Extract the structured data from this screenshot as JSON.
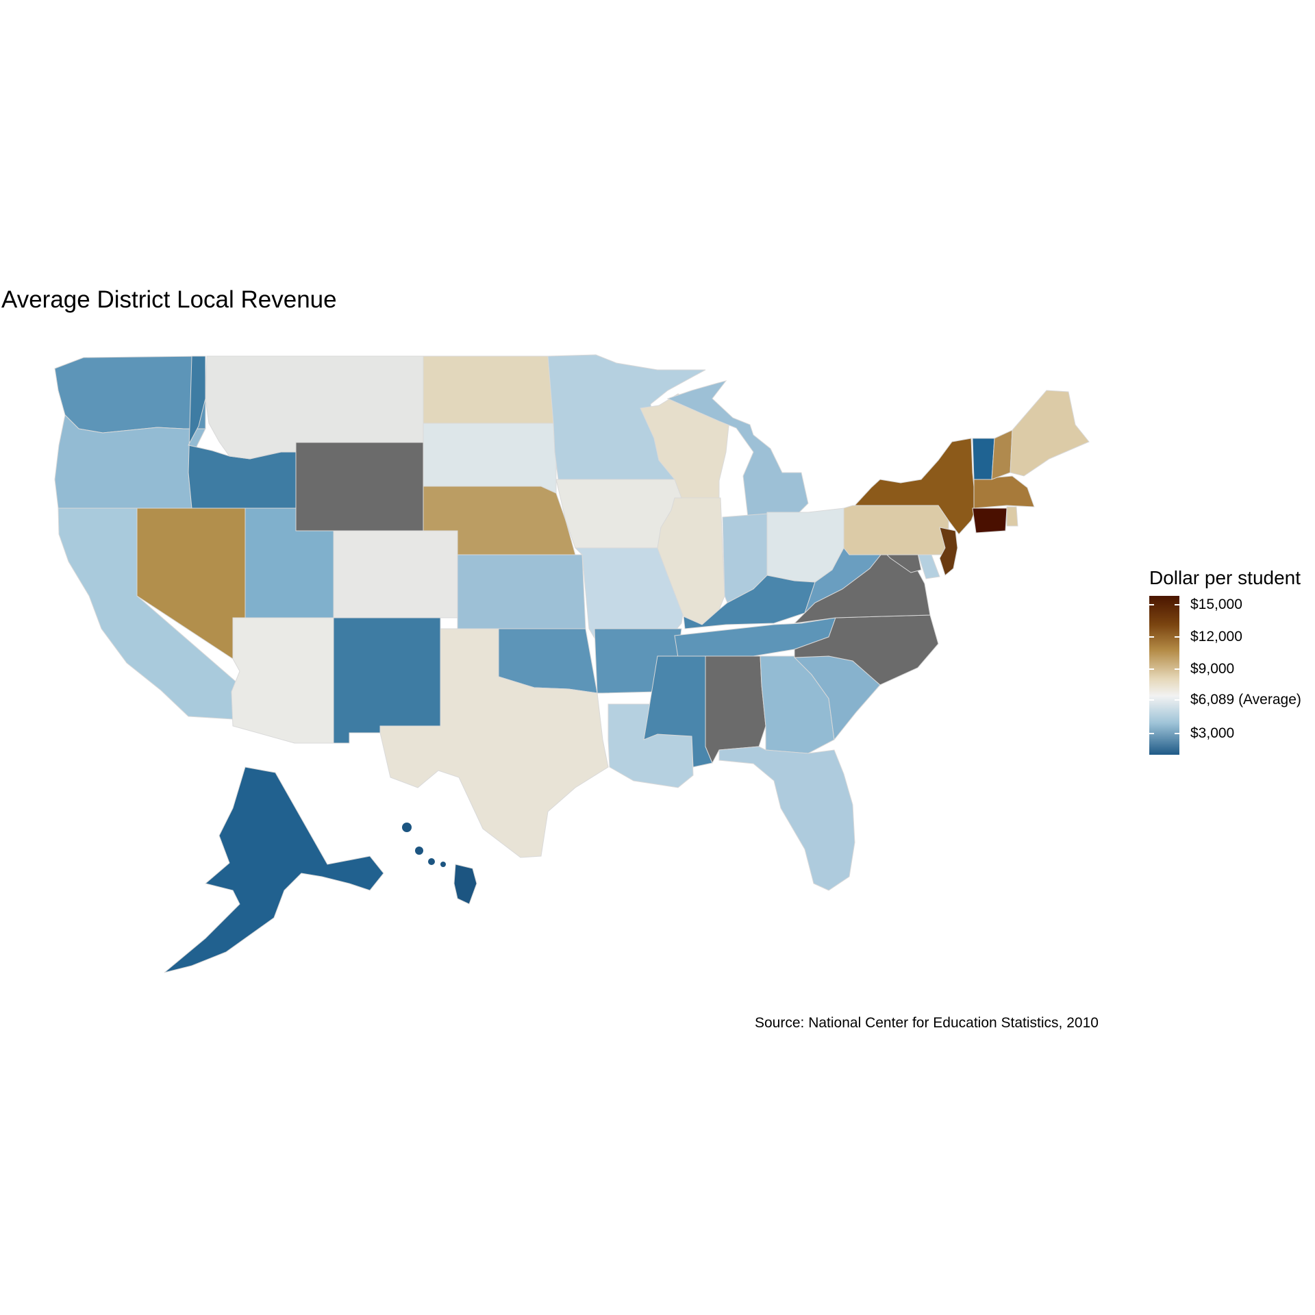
{
  "title": "Average District Local Revenue",
  "caption": "Source: National Center for Education Statistics, 2010",
  "legend": {
    "title": "Dollar per student",
    "ticks": [
      {
        "label": "$15,000",
        "value": 15000
      },
      {
        "label": "$12,000",
        "value": 12000
      },
      {
        "label": "$9,000",
        "value": 9000
      },
      {
        "label": "$6,089 (Average)",
        "value": 6089
      },
      {
        "label": "$3,000",
        "value": 3000
      }
    ],
    "scale_colors": {
      "low": "#1f5a87",
      "mid": "#f2f2f2",
      "high": "#4a1500"
    },
    "missing_color": "#6b6b6b"
  },
  "chart_data": {
    "type": "choropleth",
    "region": "United States (states)",
    "midpoint": 6089,
    "states": [
      {
        "state": "Washington",
        "color": "#5d95b8"
      },
      {
        "state": "Oregon",
        "color": "#93bbd3"
      },
      {
        "state": "California",
        "color": "#a9cadc"
      },
      {
        "state": "Nevada",
        "color": "#b28f4c"
      },
      {
        "state": "Idaho",
        "color": "#3e7ca3"
      },
      {
        "state": "Montana",
        "color": "#e5e6e4"
      },
      {
        "state": "Wyoming",
        "color": "#6b6b6b"
      },
      {
        "state": "Utah",
        "color": "#80b0cc"
      },
      {
        "state": "Arizona",
        "color": "#eaeae6"
      },
      {
        "state": "Colorado",
        "color": "#e7e7e5"
      },
      {
        "state": "New Mexico",
        "color": "#3e7ca3"
      },
      {
        "state": "North Dakota",
        "color": "#e2d7bc"
      },
      {
        "state": "South Dakota",
        "color": "#dde6e9"
      },
      {
        "state": "Nebraska",
        "color": "#bb9d63"
      },
      {
        "state": "Kansas",
        "color": "#9dc0d6"
      },
      {
        "state": "Oklahoma",
        "color": "#5d95b8"
      },
      {
        "state": "Texas",
        "color": "#e8e3d6"
      },
      {
        "state": "Minnesota",
        "color": "#b5d0e0"
      },
      {
        "state": "Iowa",
        "color": "#e8e8e3"
      },
      {
        "state": "Missouri",
        "color": "#c5d9e6"
      },
      {
        "state": "Arkansas",
        "color": "#5d95b8"
      },
      {
        "state": "Louisiana",
        "color": "#b5d0e0"
      },
      {
        "state": "Wisconsin",
        "color": "#e6decb"
      },
      {
        "state": "Illinois",
        "color": "#e7e2d4"
      },
      {
        "state": "Michigan",
        "color": "#9dc0d6"
      },
      {
        "state": "Indiana",
        "color": "#aecbdd"
      },
      {
        "state": "Ohio",
        "color": "#dde6e9"
      },
      {
        "state": "Kentucky",
        "color": "#4a86ac"
      },
      {
        "state": "Tennessee",
        "color": "#5d95b8"
      },
      {
        "state": "Mississippi",
        "color": "#4a86ac"
      },
      {
        "state": "Alabama",
        "color": "#6b6b6b"
      },
      {
        "state": "Georgia",
        "color": "#93bbd3"
      },
      {
        "state": "Florida",
        "color": "#aecbdd"
      },
      {
        "state": "South Carolina",
        "color": "#87b2cd"
      },
      {
        "state": "North Carolina",
        "color": "#6b6b6b"
      },
      {
        "state": "Virginia",
        "color": "#6b6b6b"
      },
      {
        "state": "West Virginia",
        "color": "#6a9ec0"
      },
      {
        "state": "Maryland",
        "color": "#6b6b6b"
      },
      {
        "state": "Delaware",
        "color": "#b5d0e0"
      },
      {
        "state": "Pennsylvania",
        "color": "#dccba7"
      },
      {
        "state": "New Jersey",
        "color": "#6a3a10"
      },
      {
        "state": "New York",
        "color": "#8c5a1a"
      },
      {
        "state": "Connecticut",
        "color": "#4a1000"
      },
      {
        "state": "Rhode Island",
        "color": "#dccba7"
      },
      {
        "state": "Massachusetts",
        "color": "#a77a3a"
      },
      {
        "state": "Vermont",
        "color": "#1f6392"
      },
      {
        "state": "New Hampshire",
        "color": "#b08a4e"
      },
      {
        "state": "Maine",
        "color": "#dccba7"
      },
      {
        "state": "Alaska",
        "color": "#21618f"
      },
      {
        "state": "Hawaii",
        "color": "#1c5581"
      }
    ]
  }
}
